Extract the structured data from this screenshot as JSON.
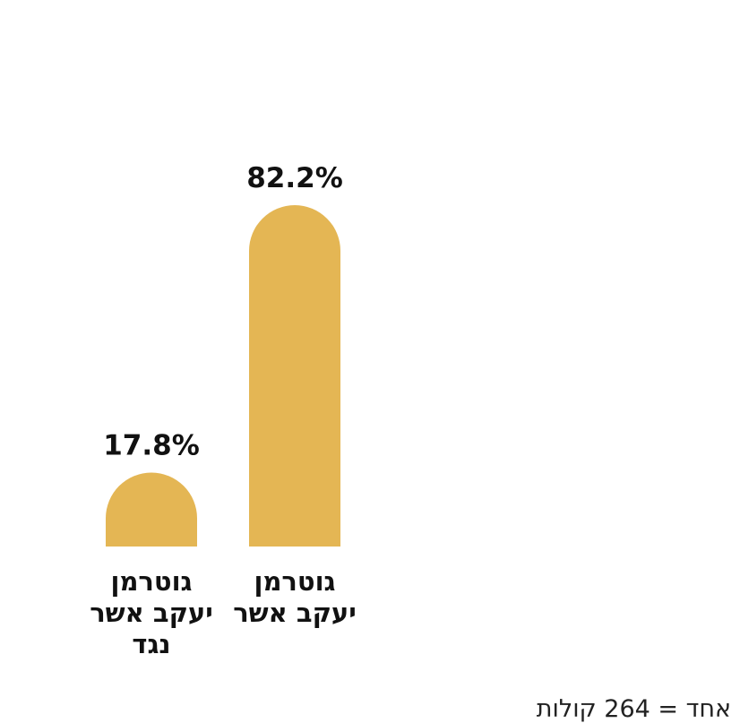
{
  "chart_data": {
    "type": "bar",
    "categories": [
      [
        "גוטרמן",
        "יעקב אשר"
      ],
      [
        "גוטרמן",
        "יעקב אשר",
        "נגד"
      ]
    ],
    "values": [
      82.2,
      17.8
    ],
    "value_labels": [
      "82.2%",
      "17.8%"
    ],
    "ylim": [
      0,
      82.2
    ],
    "colors": {
      "bar": "#e4b654"
    },
    "grid": false,
    "legend": "none"
  },
  "footnote": "ן אחד = 264 קולות"
}
